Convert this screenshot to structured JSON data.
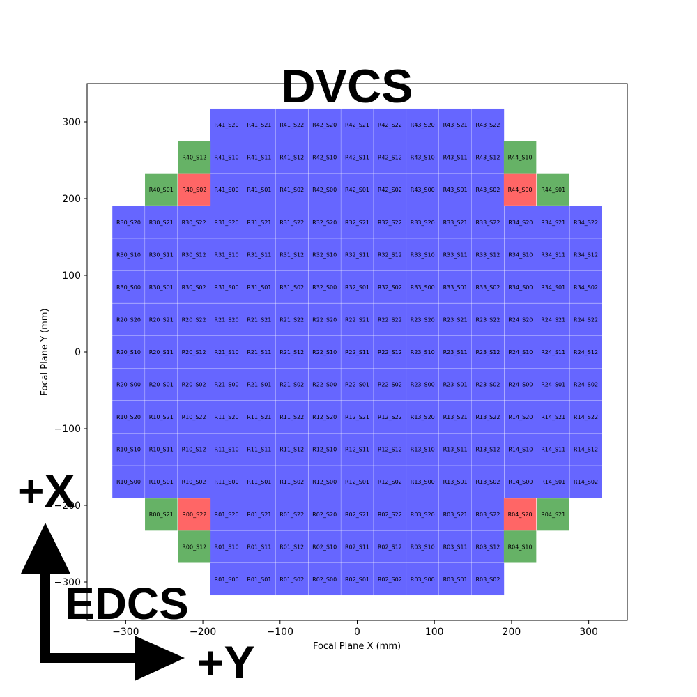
{
  "chart_data": {
    "type": "scatter",
    "title": "DVCS",
    "xlabel": "Focal Plane X (mm)",
    "ylabel": "Focal Plane Y (mm)",
    "xlim": [
      -350,
      350
    ],
    "ylim": [
      -350,
      350
    ],
    "xticks": [
      -300,
      -200,
      -100,
      0,
      100,
      200,
      300
    ],
    "yticks": [
      -300,
      -200,
      -100,
      0,
      100,
      200,
      300
    ],
    "xtick_labels": [
      "−300",
      "−200",
      "−100",
      "0",
      "100",
      "200",
      "300"
    ],
    "ytick_labels": [
      "−300",
      "−200",
      "−100",
      "0",
      "100",
      "200",
      "300"
    ],
    "grid": false,
    "cell_size_mm": 42,
    "raft_pitch_mm": 127,
    "sensor_pitch_mm": 42.3,
    "colors": {
      "science": "#6666ff",
      "wavefront": "#66b266",
      "guider": "#ff6666"
    },
    "rafts": [
      {
        "name": "R01",
        "type": "science",
        "x": -127,
        "y": -254
      },
      {
        "name": "R02",
        "type": "science",
        "x": 0,
        "y": -254
      },
      {
        "name": "R03",
        "type": "science",
        "x": 127,
        "y": -254
      },
      {
        "name": "R10",
        "type": "science",
        "x": -254,
        "y": -127
      },
      {
        "name": "R11",
        "type": "science",
        "x": -127,
        "y": -127
      },
      {
        "name": "R12",
        "type": "science",
        "x": 0,
        "y": -127
      },
      {
        "name": "R13",
        "type": "science",
        "x": 127,
        "y": -127
      },
      {
        "name": "R14",
        "type": "science",
        "x": 254,
        "y": -127
      },
      {
        "name": "R20",
        "type": "science",
        "x": -254,
        "y": 0
      },
      {
        "name": "R21",
        "type": "science",
        "x": -127,
        "y": 0
      },
      {
        "name": "R22",
        "type": "science",
        "x": 0,
        "y": 0
      },
      {
        "name": "R23",
        "type": "science",
        "x": 127,
        "y": 0
      },
      {
        "name": "R24",
        "type": "science",
        "x": 254,
        "y": 0
      },
      {
        "name": "R30",
        "type": "science",
        "x": -254,
        "y": 127
      },
      {
        "name": "R31",
        "type": "science",
        "x": -127,
        "y": 127
      },
      {
        "name": "R32",
        "type": "science",
        "x": 0,
        "y": 127
      },
      {
        "name": "R33",
        "type": "science",
        "x": 127,
        "y": 127
      },
      {
        "name": "R34",
        "type": "science",
        "x": 254,
        "y": 127
      },
      {
        "name": "R41",
        "type": "science",
        "x": -127,
        "y": 254
      },
      {
        "name": "R42",
        "type": "science",
        "x": 0,
        "y": 254
      },
      {
        "name": "R43",
        "type": "science",
        "x": 127,
        "y": 254
      }
    ],
    "corner_sensors": [
      {
        "label": "R40_S12",
        "type": "wavefront",
        "x": -211,
        "y": 254
      },
      {
        "label": "R40_S01",
        "type": "wavefront",
        "x": -254,
        "y": 212
      },
      {
        "label": "R40_S02",
        "type": "guider",
        "x": -211,
        "y": 212
      },
      {
        "label": "R44_S10",
        "type": "wavefront",
        "x": 211,
        "y": 254
      },
      {
        "label": "R44_S00",
        "type": "guider",
        "x": 211,
        "y": 212
      },
      {
        "label": "R44_S01",
        "type": "wavefront",
        "x": 254,
        "y": 212
      },
      {
        "label": "R00_S21",
        "type": "wavefront",
        "x": -254,
        "y": -212
      },
      {
        "label": "R00_S22",
        "type": "guider",
        "x": -211,
        "y": -212
      },
      {
        "label": "R00_S12",
        "type": "wavefront",
        "x": -211,
        "y": -254
      },
      {
        "label": "R04_S20",
        "type": "guider",
        "x": 211,
        "y": -212
      },
      {
        "label": "R04_S21",
        "type": "wavefront",
        "x": 254,
        "y": -212
      },
      {
        "label": "R04_S10",
        "type": "wavefront",
        "x": 211,
        "y": -254
      }
    ]
  },
  "annotations": {
    "plus_x": "+X",
    "plus_y": "+Y",
    "edcs": "EDCS"
  }
}
